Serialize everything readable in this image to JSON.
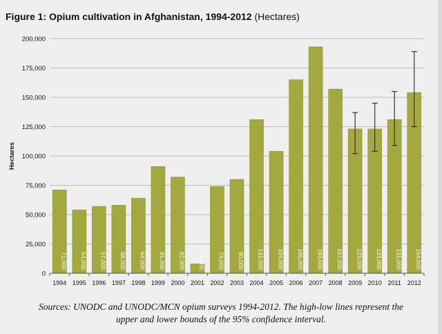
{
  "title": {
    "main": "Figure 1: Opium cultivation in Afghanistan, 1994-2012",
    "unit": "(Hectares)"
  },
  "caption": {
    "line1": "Sources: UNODC and UNODC/MCN opium surveys 1994-2012. The high-low lines represent the",
    "line2": "upper and lower bounds of the 95% confidence interval."
  },
  "colors": {
    "bar": "#a3a83f",
    "bar_edge": "#8e9330",
    "error": "#333333",
    "axis": "#555555",
    "grid": "#bdbdbd"
  },
  "chart_data": {
    "type": "bar",
    "ylabel": "Hectares",
    "xlabel": "",
    "ylim": [
      0,
      200000
    ],
    "yticks": [
      0,
      25000,
      50000,
      75000,
      100000,
      125000,
      150000,
      175000,
      200000
    ],
    "ytick_labels": [
      "0",
      "25,000",
      "50,000",
      "75,000",
      "100,000",
      "125,000",
      "150,000",
      "175,000",
      "200,000"
    ],
    "grid": true,
    "categories": [
      "1994",
      "1995",
      "1996",
      "1997",
      "1998",
      "1999",
      "2000",
      "2001",
      "2002",
      "2003",
      "2004",
      "2005",
      "2006",
      "2007",
      "2008",
      "2009",
      "2010",
      "2011",
      "2012"
    ],
    "values": [
      71000,
      54000,
      57000,
      58000,
      64000,
      91000,
      82000,
      8000,
      74000,
      80000,
      131000,
      104000,
      165000,
      193000,
      157000,
      123000,
      123000,
      131000,
      154000
    ],
    "value_labels": [
      "71,000",
      "54,000",
      "57,000",
      "58,000",
      "64,000",
      "91,000",
      "82,000",
      "8,000",
      "74,000",
      "80,000",
      "131,000",
      "104,000",
      "165,000",
      "193,000",
      "157,000",
      "123,000",
      "123,000",
      "131,000",
      "154,000"
    ],
    "error_bars": [
      {
        "category": "2009",
        "low": 102000,
        "high": 137000
      },
      {
        "category": "2010",
        "low": 104000,
        "high": 145000
      },
      {
        "category": "2011",
        "low": 109000,
        "high": 155000
      },
      {
        "category": "2012",
        "low": 125000,
        "high": 189000
      }
    ]
  }
}
